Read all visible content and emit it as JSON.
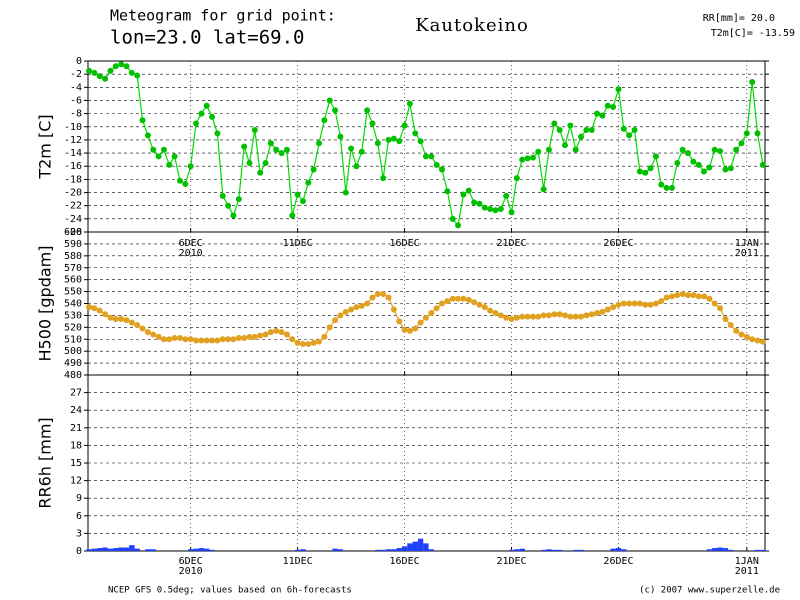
{
  "header": {
    "line1": "Meteogram for grid point:",
    "line2": "lon=23.0  lat=69.0",
    "title": "Kautokeino",
    "info1": "RR[mm]= 20.0",
    "info2": "T2m[C]= -13.59"
  },
  "footer": {
    "left": "NCEP GFS 0.5deg; values based on 6h-forecasts",
    "right": "(c) 2007 www.superzelle.de"
  },
  "chart_data": [
    {
      "type": "line",
      "y_label": "T2m [C]",
      "color": "#00dd00",
      "marker_color": "#00c000",
      "grid": true,
      "xlim": [
        1.2,
        32.85
      ],
      "ylim": [
        -26,
        0
      ],
      "xticks": [
        {
          "value": 6,
          "label": "6DEC",
          "year": "2010"
        },
        {
          "value": 11,
          "label": "11DEC"
        },
        {
          "value": 16,
          "label": "16DEC"
        },
        {
          "value": 21,
          "label": "21DEC"
        },
        {
          "value": 26,
          "label": "26DEC"
        },
        {
          "value": 32,
          "label": "1JAN",
          "year": "2011"
        }
      ],
      "yticks": [
        0,
        -2,
        -4,
        -6,
        -8,
        -10,
        -12,
        -14,
        -16,
        -18,
        -20,
        -22,
        -24,
        -26
      ],
      "x": [
        1.25,
        1.5,
        1.75,
        2,
        2.25,
        2.5,
        2.75,
        3,
        3.25,
        3.5,
        3.75,
        4,
        4.25,
        4.5,
        4.75,
        5,
        5.25,
        5.5,
        5.75,
        6,
        6.25,
        6.5,
        6.75,
        7,
        7.25,
        7.5,
        7.75,
        8,
        8.25,
        8.5,
        8.75,
        9,
        9.25,
        9.5,
        9.75,
        10,
        10.25,
        10.5,
        10.75,
        11,
        11.25,
        11.5,
        11.75,
        12,
        12.25,
        12.5,
        12.75,
        13,
        13.25,
        13.5,
        13.75,
        14,
        14.25,
        14.5,
        14.75,
        15,
        15.25,
        15.5,
        15.75,
        16,
        16.25,
        16.5,
        16.75,
        17,
        17.25,
        17.5,
        17.75,
        18,
        18.25,
        18.5,
        18.75,
        19,
        19.25,
        19.5,
        19.75,
        20,
        20.25,
        20.5,
        20.75,
        21,
        21.25,
        21.5,
        21.75,
        22,
        22.25,
        22.5,
        22.75,
        23,
        23.25,
        23.5,
        23.75,
        24,
        24.25,
        24.5,
        24.75,
        25,
        25.25,
        25.5,
        25.75,
        26,
        26.25,
        26.5,
        26.75,
        27,
        27.25,
        27.5,
        27.75,
        28,
        28.25,
        28.5,
        28.75,
        29,
        29.25,
        29.5,
        29.75,
        30,
        30.25,
        30.5,
        30.75,
        31,
        31.25,
        31.5,
        31.75,
        32,
        32.25,
        32.5,
        32.75
      ],
      "values": [
        -1.5,
        -1.8,
        -2.3,
        -2.7,
        -1.5,
        -0.8,
        -0.5,
        -0.8,
        -1.8,
        -2.2,
        -9,
        -11.3,
        -13.5,
        -14.5,
        -13.5,
        -15.8,
        -14.5,
        -18.2,
        -18.7,
        -16,
        -9.5,
        -8,
        -6.8,
        -8.5,
        -11,
        -20.5,
        -22,
        -23.5,
        -21,
        -13,
        -15.5,
        -10.5,
        -17,
        -15.5,
        -12.5,
        -13.5,
        -14,
        -13.5,
        -23.5,
        -20.3,
        -21.3,
        -18.5,
        -16.5,
        -12.5,
        -9,
        -6,
        -7.5,
        -11.5,
        -20,
        -13.3,
        -16,
        -13.8,
        -7.5,
        -9.5,
        -12.5,
        -17.8,
        -12,
        -11.8,
        -12.2,
        -9.8,
        -6.5,
        -11,
        -12.2,
        -14.5,
        -14.5,
        -15.8,
        -16.5,
        -19.8,
        -24,
        -25,
        -20.3,
        -19.7,
        -21.5,
        -21.7,
        -22.3,
        -22.5,
        -22.7,
        -22.5,
        -20.5,
        -23,
        -17.8,
        -15,
        -14.8,
        -14.7,
        -13.8,
        -19.5,
        -13.5,
        -9.5,
        -10.5,
        -12.8,
        -9.8,
        -13.5,
        -11.5,
        -10.5,
        -10.5,
        -8,
        -8.3,
        -6.8,
        -7,
        -4.3,
        -10.3,
        -11.3,
        -10.5,
        -16.8,
        -17,
        -16.3,
        -14.5,
        -18.8,
        -19.3,
        -19.3,
        -15.5,
        -13.5,
        -14,
        -15.3,
        -15.8,
        -16.8,
        -16.2,
        -13.5,
        -13.7,
        -16.5,
        -16.3,
        -13.5,
        -12.5,
        -11,
        -3.2,
        -11,
        -15.8
      ]
    },
    {
      "type": "line",
      "y_label": "H500 [gpdam]",
      "color": "#e8a020",
      "marker_color": "#e0a020",
      "grid": true,
      "xlim": [
        1.2,
        32.85
      ],
      "ylim": [
        480,
        600
      ],
      "xticks": [
        {
          "value": 6,
          "label": "6DEC",
          "year": "2010"
        },
        {
          "value": 11,
          "label": "11DEC"
        },
        {
          "value": 16,
          "label": "16DEC"
        },
        {
          "value": 21,
          "label": "21DEC"
        },
        {
          "value": 26,
          "label": "26DEC"
        },
        {
          "value": 32,
          "label": "1JAN",
          "year": "2011"
        }
      ],
      "yticks": [
        480,
        490,
        500,
        510,
        520,
        530,
        540,
        550,
        560,
        570,
        580,
        590,
        600
      ],
      "x": [
        1.25,
        1.5,
        1.75,
        2,
        2.25,
        2.5,
        2.75,
        3,
        3.25,
        3.5,
        3.75,
        4,
        4.25,
        4.5,
        4.75,
        5,
        5.25,
        5.5,
        5.75,
        6,
        6.25,
        6.5,
        6.75,
        7,
        7.25,
        7.5,
        7.75,
        8,
        8.25,
        8.5,
        8.75,
        9,
        9.25,
        9.5,
        9.75,
        10,
        10.25,
        10.5,
        10.75,
        11,
        11.25,
        11.5,
        11.75,
        12,
        12.25,
        12.5,
        12.75,
        13,
        13.25,
        13.5,
        13.75,
        14,
        14.25,
        14.5,
        14.75,
        15,
        15.25,
        15.5,
        15.75,
        16,
        16.25,
        16.5,
        16.75,
        17,
        17.25,
        17.5,
        17.75,
        18,
        18.25,
        18.5,
        18.75,
        19,
        19.25,
        19.5,
        19.75,
        20,
        20.25,
        20.5,
        20.75,
        21,
        21.25,
        21.5,
        21.75,
        22,
        22.25,
        22.5,
        22.75,
        23,
        23.25,
        23.5,
        23.75,
        24,
        24.25,
        24.5,
        24.75,
        25,
        25.25,
        25.5,
        25.75,
        26,
        26.25,
        26.5,
        26.75,
        27,
        27.25,
        27.5,
        27.75,
        28,
        28.25,
        28.5,
        28.75,
        29,
        29.25,
        29.5,
        29.75,
        30,
        30.25,
        30.5,
        30.75,
        31,
        31.25,
        31.5,
        31.75,
        32,
        32.25,
        32.5,
        32.75
      ],
      "values": [
        537,
        536,
        534,
        531,
        528,
        527,
        527,
        526,
        524,
        522,
        519,
        516,
        514,
        512,
        510,
        510,
        511,
        511,
        510,
        510,
        509,
        509,
        509,
        509,
        509,
        510,
        510,
        510,
        511,
        511,
        512,
        512,
        513,
        514,
        516,
        517,
        516,
        514,
        510,
        507,
        506,
        506,
        507,
        508,
        512,
        520,
        526,
        530,
        533,
        535,
        537,
        538,
        540,
        545,
        548,
        548,
        545,
        535,
        525,
        518,
        517,
        519,
        524,
        528,
        532,
        536,
        540,
        542,
        544,
        544,
        544,
        543,
        541,
        539,
        537,
        534,
        532,
        530,
        528,
        527,
        528,
        529,
        529,
        529,
        529,
        530,
        530,
        531,
        531,
        530,
        529,
        529,
        529,
        530,
        531,
        532,
        533,
        535,
        537,
        539,
        540,
        540,
        540,
        540,
        539,
        539,
        540,
        542,
        545,
        546,
        547,
        548,
        547,
        547,
        546,
        546,
        544,
        540,
        536,
        527,
        522,
        517,
        514,
        512,
        510,
        509,
        508
      ]
    },
    {
      "type": "bar",
      "y_label": "RR6h [mm]",
      "color": "#2040ff",
      "grid": true,
      "xlim": [
        1.2,
        32.85
      ],
      "ylim": [
        0,
        30
      ],
      "xticks": [
        {
          "value": 6,
          "label": "6DEC",
          "year": "2010"
        },
        {
          "value": 11,
          "label": "11DEC"
        },
        {
          "value": 16,
          "label": "16DEC"
        },
        {
          "value": 21,
          "label": "21DEC"
        },
        {
          "value": 26,
          "label": "26DEC"
        },
        {
          "value": 32,
          "label": "1JAN",
          "year": "2011"
        }
      ],
      "yticks": [
        0,
        3,
        6,
        9,
        12,
        15,
        18,
        21,
        24,
        27
      ],
      "x": [
        1.25,
        1.5,
        1.75,
        2,
        2.25,
        2.5,
        2.75,
        3,
        3.25,
        3.5,
        3.75,
        4,
        4.25,
        4.5,
        4.75,
        5,
        5.25,
        5.5,
        5.75,
        6,
        6.25,
        6.5,
        6.75,
        7,
        7.25,
        7.5,
        7.75,
        8,
        8.25,
        8.5,
        8.75,
        9,
        9.25,
        9.5,
        9.75,
        10,
        10.25,
        10.5,
        10.75,
        11,
        11.25,
        11.5,
        11.75,
        12,
        12.25,
        12.5,
        12.75,
        13,
        13.25,
        13.5,
        13.75,
        14,
        14.25,
        14.5,
        14.75,
        15,
        15.25,
        15.5,
        15.75,
        16,
        16.25,
        16.5,
        16.75,
        17,
        17.25,
        17.5,
        17.75,
        18,
        18.25,
        18.5,
        18.75,
        19,
        19.25,
        19.5,
        19.75,
        20,
        20.25,
        20.5,
        20.75,
        21,
        21.25,
        21.5,
        21.75,
        22,
        22.25,
        22.5,
        22.75,
        23,
        23.25,
        23.5,
        23.75,
        24,
        24.25,
        24.5,
        24.75,
        25,
        25.25,
        25.5,
        25.75,
        26,
        26.25,
        26.5,
        26.75,
        27,
        27.25,
        27.5,
        27.75,
        28,
        28.25,
        28.5,
        28.75,
        29,
        29.25,
        29.5,
        29.75,
        30,
        30.25,
        30.5,
        30.75,
        31,
        31.25,
        31.5,
        31.75,
        32,
        32.25,
        32.5,
        32.75
      ],
      "values": [
        0.3,
        0.4,
        0.5,
        0.6,
        0.4,
        0.5,
        0.6,
        0.6,
        1.0,
        0.4,
        0,
        0.3,
        0.3,
        0,
        0,
        0,
        0,
        0,
        0,
        0.3,
        0.4,
        0.5,
        0.4,
        0.2,
        0,
        0,
        0,
        0,
        0,
        0,
        0,
        0,
        0,
        0,
        0,
        0,
        0,
        0,
        0,
        0.2,
        0.3,
        0,
        0,
        0,
        0,
        0,
        0.4,
        0.3,
        0,
        0,
        0,
        0,
        0,
        0,
        0.2,
        0.2,
        0.3,
        0.3,
        0.5,
        0.8,
        1.3,
        1.6,
        2.1,
        1.3,
        0.3,
        0,
        0,
        0,
        0,
        0,
        0,
        0,
        0,
        0,
        0,
        0,
        0,
        0,
        0,
        0.2,
        0.3,
        0.4,
        0,
        0,
        0,
        0.2,
        0.3,
        0.2,
        0.2,
        0,
        0,
        0.2,
        0.2,
        0,
        0,
        0,
        0,
        0,
        0.4,
        0.5,
        0.3,
        0,
        0,
        0,
        0,
        0,
        0,
        0,
        0,
        0,
        0,
        0,
        0,
        0,
        0,
        0,
        0.3,
        0.5,
        0.6,
        0.5,
        0.2,
        0,
        0,
        0,
        0,
        0.2,
        0.2
      ]
    }
  ]
}
